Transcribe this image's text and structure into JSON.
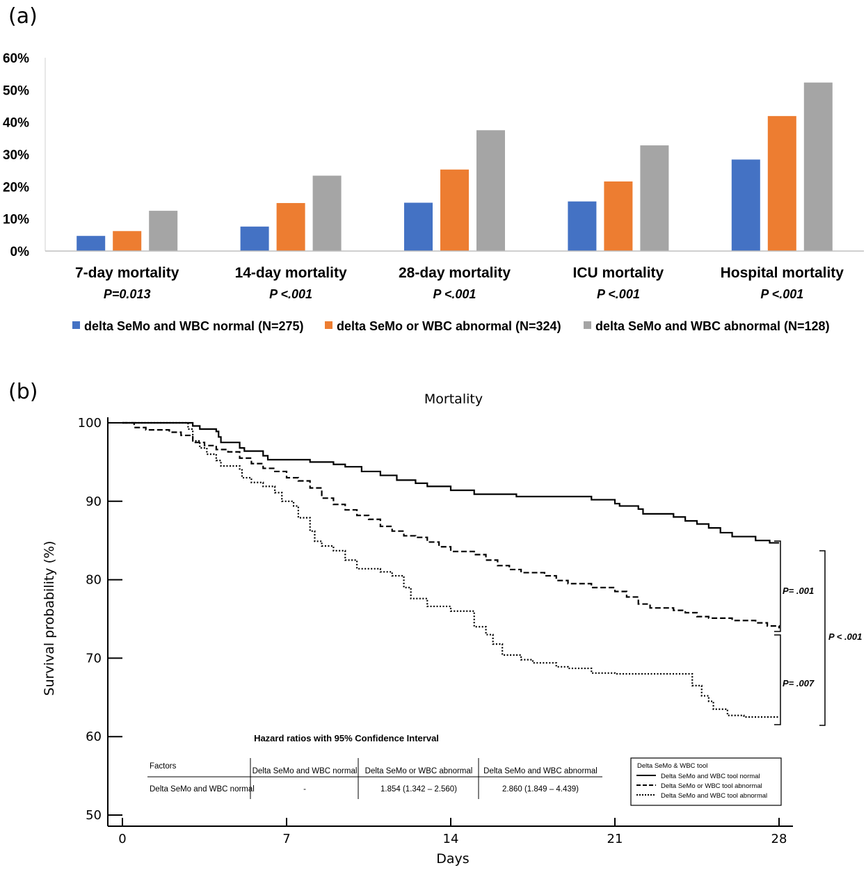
{
  "panel_a": {
    "label": "(a)",
    "colors": [
      "#4472C4",
      "#ED7D31",
      "#A5A5A5"
    ],
    "chart_data": {
      "type": "bar",
      "title": "",
      "categories": [
        "7-day mortality",
        "14-day mortality",
        "28-day mortality",
        "ICU mortality",
        "Hospital mortality"
      ],
      "p_values": [
        "P=0.013",
        "P <.001",
        "P <.001",
        "P <.001",
        "P <.001"
      ],
      "series": [
        {
          "name": "delta SeMo and WBC normal (N=275)",
          "values": [
            4.7,
            7.6,
            15.0,
            15.4,
            28.4
          ]
        },
        {
          "name": "delta SeMo or WBC abnormal (N=324)",
          "values": [
            6.2,
            14.9,
            25.3,
            21.6,
            41.9
          ]
        },
        {
          "name": "delta SeMo and WBC abnormal (N=128)",
          "values": [
            12.5,
            23.4,
            37.5,
            32.8,
            52.3
          ]
        }
      ],
      "yticks": [
        "0%",
        "10%",
        "20%",
        "30%",
        "40%",
        "50%",
        "60%"
      ],
      "ylim": [
        0,
        60
      ],
      "xlabel": "",
      "ylabel": "",
      "legend": "bottom"
    }
  },
  "panel_b": {
    "label": "(b)",
    "chart_data": {
      "type": "line",
      "title": "Mortality",
      "xlabel": "Days",
      "ylabel": "Survival probability (%)",
      "xlim": [
        0,
        28
      ],
      "ylim": [
        50,
        100
      ],
      "xticks": [
        "0",
        "7",
        "14",
        "21",
        "28"
      ],
      "yticks": [
        "50",
        "60",
        "70",
        "80",
        "90",
        "100"
      ],
      "series": [
        {
          "name": "Delta SeMo and WBC tool normal",
          "style": "solid",
          "points": [
            [
              0,
              100
            ],
            [
              2,
              100
            ],
            [
              3,
              99.6
            ],
            [
              3.3,
              99.2
            ],
            [
              4,
              98.9
            ],
            [
              4.1,
              98.2
            ],
            [
              4.2,
              97.5
            ],
            [
              5,
              97.1
            ],
            [
              5,
              96.8
            ],
            [
              5.2,
              96.4
            ],
            [
              6,
              95.8
            ],
            [
              6.2,
              95.3
            ],
            [
              8,
              95
            ],
            [
              9,
              94.7
            ],
            [
              9.5,
              94.4
            ],
            [
              10.2,
              93.8
            ],
            [
              11,
              93.3
            ],
            [
              11.7,
              92.7
            ],
            [
              12.5,
              92.3
            ],
            [
              13,
              91.9
            ],
            [
              14,
              91.4
            ],
            [
              15,
              90.9
            ],
            [
              16,
              90.9
            ],
            [
              16.8,
              90.6
            ],
            [
              18,
              90.6
            ],
            [
              19,
              90.6
            ],
            [
              20,
              90.2
            ],
            [
              21,
              89.7
            ],
            [
              21.2,
              89.4
            ],
            [
              22,
              89
            ],
            [
              22.2,
              88.4
            ],
            [
              23.5,
              88
            ],
            [
              24,
              87.5
            ],
            [
              24.5,
              87.1
            ],
            [
              25,
              86.6
            ],
            [
              25.5,
              86
            ],
            [
              26,
              85.5
            ],
            [
              27,
              85
            ],
            [
              27.6,
              84.7
            ],
            [
              28,
              84.7
            ]
          ]
        },
        {
          "name": "Delta SeMo or WBC tool abnormal",
          "style": "dashed",
          "points": [
            [
              0,
              100
            ],
            [
              0.5,
              99.4
            ],
            [
              1,
              99.1
            ],
            [
              2,
              98.8
            ],
            [
              2.5,
              98.4
            ],
            [
              3,
              97.5
            ],
            [
              3.5,
              97.1
            ],
            [
              4,
              96.6
            ],
            [
              4.5,
              96.3
            ],
            [
              5,
              95.5
            ],
            [
              5.5,
              94.8
            ],
            [
              6,
              94.2
            ],
            [
              6.5,
              93.8
            ],
            [
              7,
              93
            ],
            [
              7.5,
              92.6
            ],
            [
              8,
              91.7
            ],
            [
              8.5,
              90.4
            ],
            [
              9,
              89.6
            ],
            [
              9.5,
              88.9
            ],
            [
              10,
              88.2
            ],
            [
              10.5,
              87.7
            ],
            [
              11,
              86.8
            ],
            [
              11.5,
              86.2
            ],
            [
              12,
              85.6
            ],
            [
              12.5,
              85.4
            ],
            [
              13,
              84.8
            ],
            [
              13.5,
              84.2
            ],
            [
              14,
              83.6
            ],
            [
              15,
              83.2
            ],
            [
              15.5,
              82.5
            ],
            [
              16,
              81.8
            ],
            [
              16.5,
              81.3
            ],
            [
              17,
              80.9
            ],
            [
              18,
              80.5
            ],
            [
              18.5,
              79.9
            ],
            [
              19,
              79.5
            ],
            [
              20,
              79
            ],
            [
              21,
              78.5
            ],
            [
              21.5,
              77.8
            ],
            [
              22,
              76.9
            ],
            [
              22.5,
              76.4
            ],
            [
              23.5,
              76.1
            ],
            [
              24,
              75.8
            ],
            [
              24.5,
              75.3
            ],
            [
              25,
              75.1
            ],
            [
              26,
              74.8
            ],
            [
              26.5,
              74.8
            ],
            [
              27,
              74.5
            ],
            [
              27.5,
              74.1
            ],
            [
              28,
              73.8
            ]
          ]
        },
        {
          "name": "Delta SeMo and WBC tool abnormal",
          "style": "dotted",
          "points": [
            [
              0,
              100
            ],
            [
              2,
              100
            ],
            [
              2.8,
              99.2
            ],
            [
              3,
              97.7
            ],
            [
              3.3,
              96.8
            ],
            [
              3.6,
              96
            ],
            [
              4,
              95.2
            ],
            [
              4.2,
              94.5
            ],
            [
              5,
              94
            ],
            [
              5.1,
              93
            ],
            [
              5.5,
              92.4
            ],
            [
              6,
              91.9
            ],
            [
              6.5,
              91.1
            ],
            [
              6.8,
              90
            ],
            [
              7.3,
              89.4
            ],
            [
              7.5,
              87.9
            ],
            [
              8,
              86.2
            ],
            [
              8.2,
              84.9
            ],
            [
              8.5,
              84.3
            ],
            [
              9,
              83.7
            ],
            [
              9.5,
              82.5
            ],
            [
              10,
              81.4
            ],
            [
              11,
              81
            ],
            [
              11.5,
              80.5
            ],
            [
              12,
              79
            ],
            [
              12.3,
              77.6
            ],
            [
              13,
              76.6
            ],
            [
              14,
              76
            ],
            [
              15,
              74
            ],
            [
              15.5,
              73
            ],
            [
              15.8,
              71.8
            ],
            [
              16.2,
              70.4
            ],
            [
              17,
              69.8
            ],
            [
              17.5,
              69.4
            ],
            [
              18.5,
              68.9
            ],
            [
              19,
              68.7
            ],
            [
              20,
              68.1
            ],
            [
              21,
              68
            ],
            [
              22,
              68
            ],
            [
              24,
              68
            ],
            [
              24.3,
              66.5
            ],
            [
              24.7,
              65.2
            ],
            [
              25,
              64.5
            ],
            [
              25.2,
              63.5
            ],
            [
              25.8,
              62.7
            ],
            [
              26.5,
              62.5
            ],
            [
              28,
              62.5
            ]
          ]
        }
      ],
      "comparisons": [
        {
          "label": "P= .001"
        },
        {
          "label": "P= .007"
        },
        {
          "label": "P < .001"
        }
      ],
      "legend": "bottom-right"
    },
    "legend_title": "Delta SeMo & WBC tool",
    "hr_table": {
      "title": "Hazard ratios with 95% Confidence Interval",
      "headers": [
        "Factors",
        "Delta SeMo and WBC normal",
        "Delta SeMo or WBC abnormal",
        "Delta SeMo and WBC abnormal"
      ],
      "rows": [
        [
          "Delta SeMo and WBC normal",
          "-",
          "1.854 (1.342 – 2.560)",
          "2.860 (1.849 – 4.439)"
        ]
      ]
    }
  }
}
